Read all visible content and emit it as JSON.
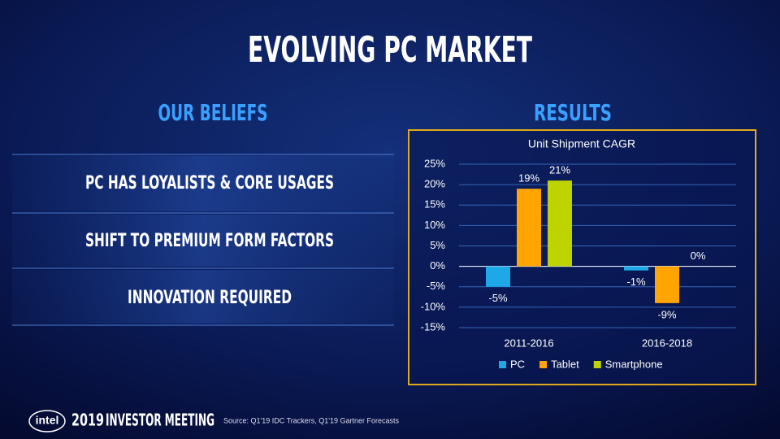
{
  "header": {
    "title": "EVOLVING PC MARKET"
  },
  "beliefs": {
    "heading": "OUR BELIEFS",
    "items": [
      "PC HAS LOYALISTS & CORE USAGES",
      "SHIFT TO PREMIUM FORM FACTORS",
      "INNOVATION REQUIRED"
    ]
  },
  "results": {
    "heading": "RESULTS"
  },
  "chart_data": {
    "type": "bar",
    "title": "Unit Shipment CAGR",
    "categories": [
      "2011-2016",
      "2016-2018"
    ],
    "series": [
      {
        "name": "PC",
        "color": "#1ea8e8",
        "values": [
          -5,
          -1
        ],
        "value_labels": [
          "-5%",
          "-1%"
        ]
      },
      {
        "name": "Tablet",
        "color": "#ffa400",
        "values": [
          19,
          -9
        ],
        "value_labels": [
          "19%",
          "-9%"
        ]
      },
      {
        "name": "Smartphone",
        "color": "#bed400",
        "values": [
          21,
          0
        ],
        "value_labels": [
          "21%",
          "0%"
        ]
      }
    ],
    "ylim": [
      -15,
      25
    ],
    "yticks": [
      {
        "value": -15,
        "label": "-15%"
      },
      {
        "value": -10,
        "label": "-10%"
      },
      {
        "value": -5,
        "label": "-5%"
      },
      {
        "value": 0,
        "label": "0%"
      },
      {
        "value": 5,
        "label": "5%"
      },
      {
        "value": 10,
        "label": "10%"
      },
      {
        "value": 15,
        "label": "15%"
      },
      {
        "value": 20,
        "label": "20%"
      },
      {
        "value": 25,
        "label": "25%"
      }
    ],
    "grid": true,
    "legend": "bottom"
  },
  "footer": {
    "logo": "intel",
    "event_year": "2019",
    "event_name": "INVESTOR MEETING",
    "source": "Source: Q1'19 IDC Trackers, Q1'19 Gartner Forecasts"
  }
}
